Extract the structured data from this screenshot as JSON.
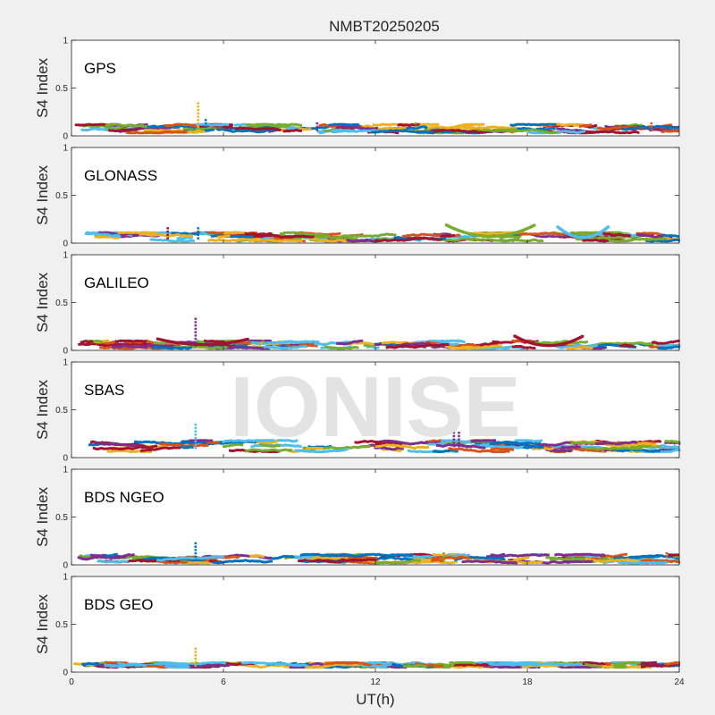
{
  "figure": {
    "title": "NMBT20250205",
    "watermark": "IONISE",
    "xlabel": "UT(h)"
  },
  "colors": {
    "background": "#f0f0f0",
    "axes_face": "#ffffff",
    "watermark": "#e3e3e3",
    "series": [
      "#0072bd",
      "#d95319",
      "#edb120",
      "#7e2f8e",
      "#77ac30",
      "#4dbeee",
      "#a2142f"
    ]
  },
  "chart_data": [
    {
      "type": "scatter",
      "panel_label": "GPS",
      "ylabel": "S4 Index",
      "xlim": [
        0,
        24
      ],
      "ylim": [
        0,
        1
      ],
      "xticks": [
        0,
        6,
        12,
        18,
        24
      ],
      "yticks": [
        0,
        0.5,
        1
      ],
      "ytick_labels": [
        "0",
        "0.5",
        "1"
      ],
      "baseline_range": [
        0.03,
        0.12
      ],
      "features": [
        {
          "x": 5.0,
          "y_from": 0.06,
          "y_to": 0.35,
          "kind": "spike",
          "color": "#edb120"
        },
        {
          "x": 5.3,
          "y_from": 0.06,
          "y_to": 0.17,
          "kind": "spike",
          "color": "#0072bd"
        },
        {
          "x": 9.7,
          "y_from": 0.06,
          "y_to": 0.15,
          "kind": "spike",
          "color": "#7e2f8e"
        },
        {
          "x": 13.6,
          "y_from": 0.06,
          "y_to": 0.15,
          "kind": "spike",
          "color": "#77ac30"
        },
        {
          "x": 22.9,
          "y_from": 0.06,
          "y_to": 0.16,
          "kind": "spike",
          "color": "#d95319"
        }
      ]
    },
    {
      "type": "scatter",
      "panel_label": "GLONASS",
      "ylabel": "S4 Index",
      "xlim": [
        0,
        24
      ],
      "ylim": [
        0,
        1
      ],
      "xticks": [
        0,
        6,
        12,
        18,
        24
      ],
      "yticks": [
        0,
        0.5,
        1
      ],
      "ytick_labels": [
        "0",
        "0.5",
        "1"
      ],
      "baseline_range": [
        0.02,
        0.11
      ],
      "features": [
        {
          "x": 3.8,
          "y_from": 0.05,
          "y_to": 0.18,
          "kind": "spike",
          "color": "#a2142f"
        },
        {
          "x": 5.0,
          "y_from": 0.05,
          "y_to": 0.17,
          "kind": "spike",
          "color": "#0072bd"
        },
        {
          "x_from": 14.8,
          "x_to": 18.3,
          "y_peak": 0.19,
          "y_min": 0.07,
          "kind": "arc",
          "color": "#77ac30"
        },
        {
          "x_from": 19.2,
          "x_to": 21.2,
          "y_peak": 0.17,
          "y_min": 0.06,
          "kind": "arc",
          "color": "#4dbeee"
        }
      ]
    },
    {
      "type": "scatter",
      "panel_label": "GALILEO",
      "ylabel": "S4 Index",
      "xlim": [
        0,
        24
      ],
      "ylim": [
        0,
        1
      ],
      "xticks": [
        0,
        6,
        12,
        18,
        24
      ],
      "yticks": [
        0,
        0.5,
        1
      ],
      "ytick_labels": [
        "0",
        "0.5",
        "1"
      ],
      "baseline_range": [
        0.02,
        0.1
      ],
      "features": [
        {
          "x": 4.9,
          "y_from": 0.05,
          "y_to": 0.35,
          "kind": "spike",
          "color": "#7e2f8e"
        },
        {
          "x_from": 3.4,
          "x_to": 7.0,
          "y_peak": 0.12,
          "y_min": 0.06,
          "kind": "arc",
          "color": "#a2142f"
        },
        {
          "x_from": 17.5,
          "x_to": 20.2,
          "y_peak": 0.15,
          "y_min": 0.05,
          "kind": "arc",
          "color": "#a2142f"
        }
      ]
    },
    {
      "type": "scatter",
      "panel_label": "SBAS",
      "ylabel": "S4 Index",
      "xlim": [
        0,
        24
      ],
      "ylim": [
        0,
        1
      ],
      "xticks": [
        0,
        6,
        12,
        18,
        24
      ],
      "yticks": [
        0,
        0.5,
        1
      ],
      "ytick_labels": [
        "0",
        "0.5",
        "1"
      ],
      "baseline_range": [
        0.06,
        0.18
      ],
      "features": [
        {
          "x": 4.9,
          "y_from": 0.1,
          "y_to": 0.35,
          "kind": "spike",
          "color": "#4dbeee"
        },
        {
          "x": 15.1,
          "y_from": 0.12,
          "y_to": 0.3,
          "kind": "spike",
          "color": "#7e2f8e"
        },
        {
          "x": 15.3,
          "y_from": 0.12,
          "y_to": 0.27,
          "kind": "spike",
          "color": "#7e2f8e"
        }
      ]
    },
    {
      "type": "scatter",
      "panel_label": "BDS NGEO",
      "ylabel": "S4 Index",
      "xlim": [
        0,
        24
      ],
      "ylim": [
        0,
        1
      ],
      "xticks": [
        0,
        6,
        12,
        18,
        24
      ],
      "yticks": [
        0,
        0.5,
        1
      ],
      "ytick_labels": [
        "0",
        "0.5",
        "1"
      ],
      "baseline_range": [
        0.02,
        0.11
      ],
      "features": [
        {
          "x": 4.9,
          "y_from": 0.05,
          "y_to": 0.25,
          "kind": "spike",
          "color": "#0072bd"
        },
        {
          "x": 14.7,
          "y_from": 0.05,
          "y_to": 0.14,
          "kind": "spike",
          "color": "#77ac30"
        },
        {
          "x": 23.5,
          "y_from": 0.05,
          "y_to": 0.15,
          "kind": "spike",
          "color": "#d95319"
        }
      ]
    },
    {
      "type": "scatter",
      "panel_label": "BDS GEO",
      "ylabel": "S4 Index",
      "xlim": [
        0,
        24
      ],
      "ylim": [
        0,
        1
      ],
      "xticks": [
        0,
        6,
        12,
        18,
        24
      ],
      "xtick_labels": [
        "0",
        "6",
        "12",
        "18",
        "24"
      ],
      "yticks": [
        0,
        0.5,
        1
      ],
      "ytick_labels": [
        "0",
        "0.5",
        "1"
      ],
      "baseline_range": [
        0.05,
        0.1
      ],
      "features": [
        {
          "x": 4.9,
          "y_from": 0.07,
          "y_to": 0.27,
          "kind": "spike",
          "color": "#edb120"
        }
      ]
    }
  ]
}
